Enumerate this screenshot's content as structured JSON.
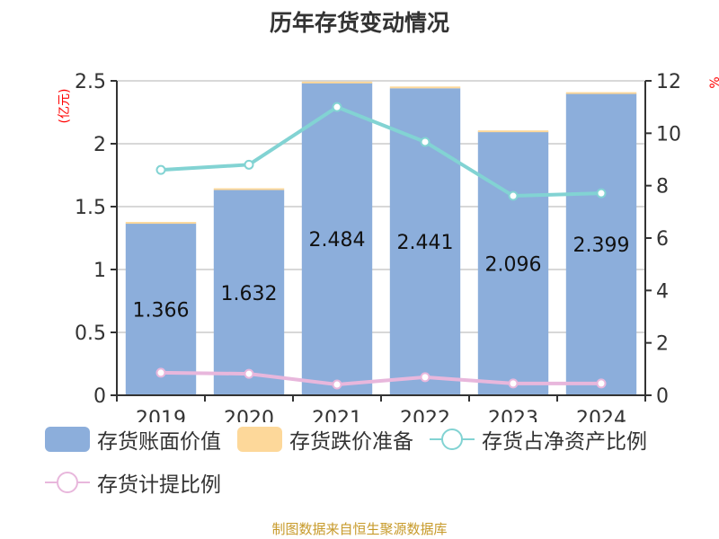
{
  "title": "历年存货变动情况",
  "left_axis_unit": "(亿元)",
  "right_axis_unit": "%",
  "source": "制图数据来自恒生聚源数据库",
  "colors": {
    "book_value": "#8caedb",
    "impairment": "#fdd89a",
    "net_asset_ratio": "#82d3d3",
    "provision_ratio": "#e8b7dc",
    "axis": "#333333",
    "grid": "#cccccc",
    "unit_label": "#ff0000",
    "source": "#c79a2a"
  },
  "legend": [
    {
      "label": "存货账面价值",
      "type": "box",
      "color": "#8caedb"
    },
    {
      "label": "存货跌价准备",
      "type": "box",
      "color": "#fdd89a"
    },
    {
      "label": "存货占净资产比例",
      "type": "line",
      "color": "#82d3d3"
    },
    {
      "label": "存货计提比例",
      "type": "line",
      "color": "#e8b7dc"
    }
  ],
  "chart_data": {
    "type": "bar",
    "title": "历年存货变动情况",
    "categories": [
      "2019",
      "2020",
      "2021",
      "2022",
      "2023",
      "2024"
    ],
    "series": [
      {
        "name": "存货账面价值",
        "type": "bar",
        "axis": "left",
        "stack": "inv",
        "values": [
          1.366,
          1.632,
          2.484,
          2.441,
          2.096,
          2.399
        ],
        "labels": [
          "1.366",
          "1.632",
          "2.484",
          "2.441",
          "2.096",
          "2.399"
        ]
      },
      {
        "name": "存货跌价准备",
        "type": "bar",
        "axis": "left",
        "stack": "inv",
        "values": [
          0.012,
          0.014,
          0.01,
          0.014,
          0.01,
          0.011
        ]
      },
      {
        "name": "存货占净资产比例",
        "type": "line",
        "axis": "right",
        "values": [
          8.6,
          8.8,
          11.0,
          9.67,
          7.61,
          7.71
        ]
      },
      {
        "name": "存货计提比例",
        "type": "line",
        "axis": "right",
        "values": [
          0.86,
          0.82,
          0.41,
          0.69,
          0.45,
          0.45
        ]
      }
    ],
    "left_axis": {
      "label": "(亿元)",
      "ylim": [
        0,
        2.5
      ],
      "ticks": [
        "0",
        "0.5",
        "1",
        "1.5",
        "2",
        "2.5"
      ]
    },
    "right_axis": {
      "label": "%",
      "ylim": [
        0,
        12
      ],
      "ticks": [
        "0",
        "2",
        "4",
        "6",
        "8",
        "10",
        "12"
      ]
    },
    "grid": true,
    "legend_position": "bottom"
  }
}
